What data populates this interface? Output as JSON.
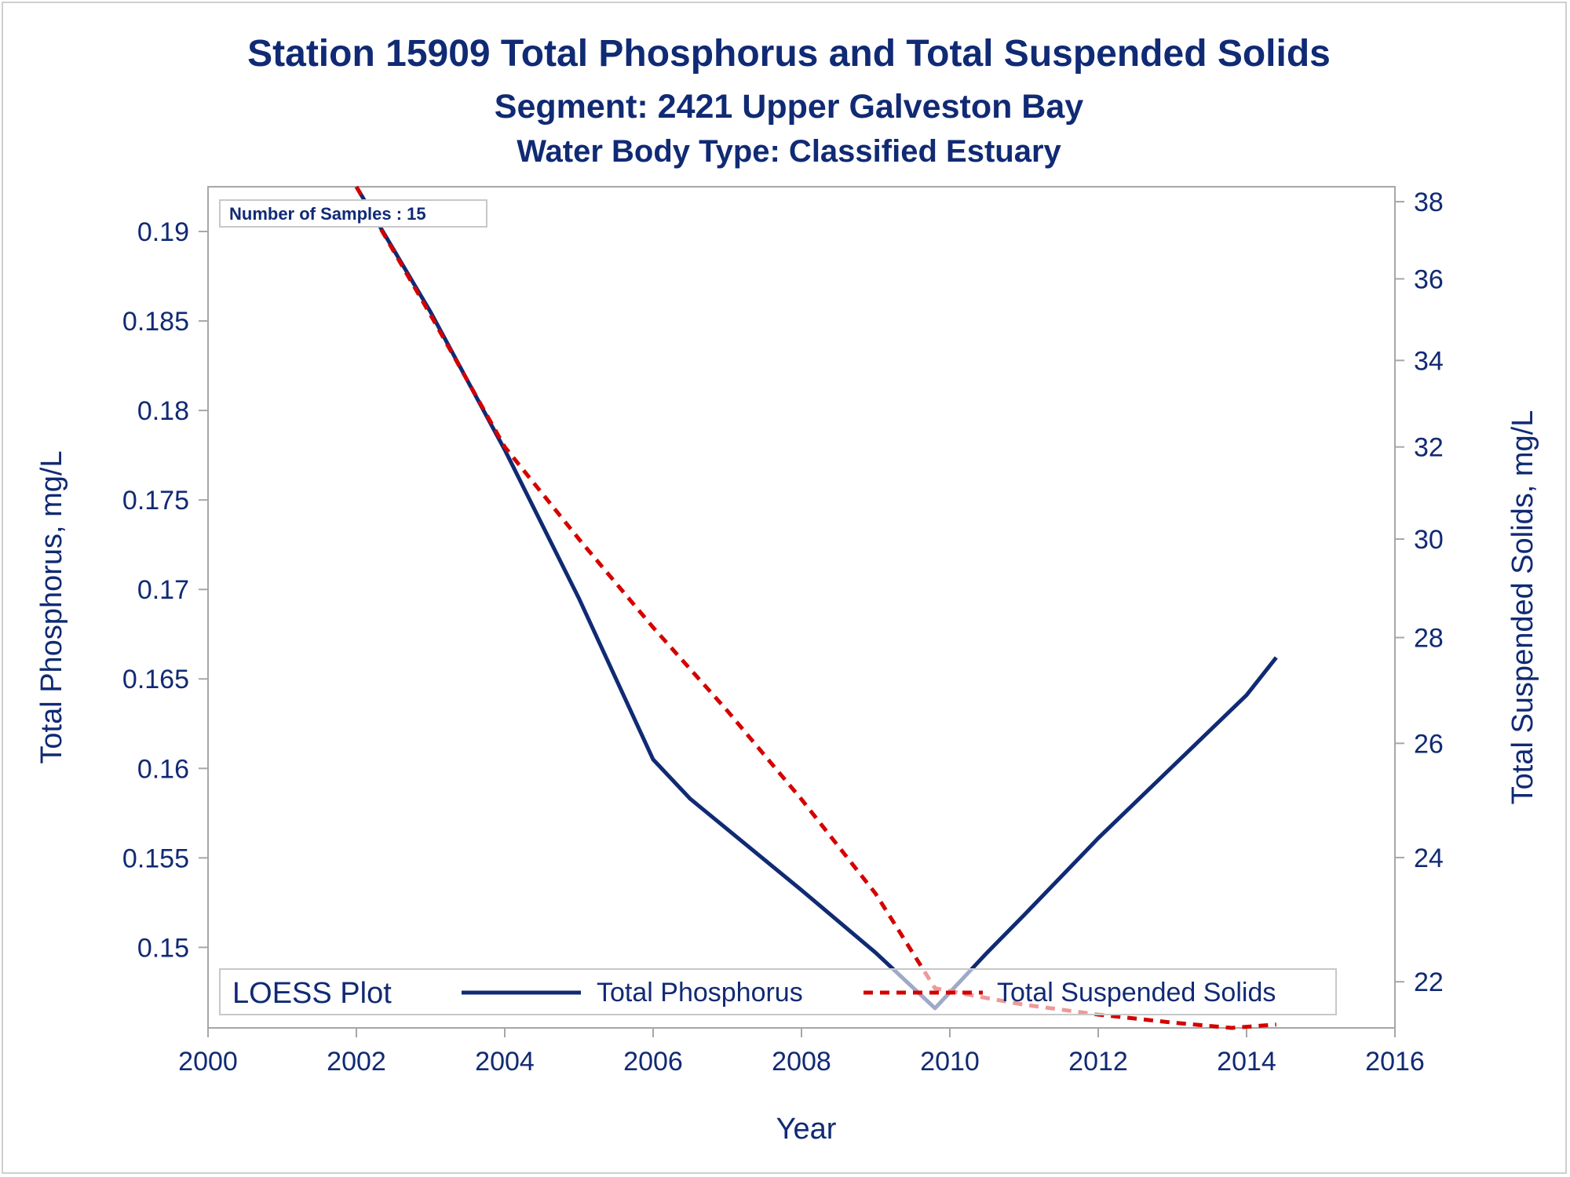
{
  "chart_data": {
    "type": "line",
    "title": "Station 15909  Total Phosphorus and Total Suspended Solids",
    "subtitle": "Segment: 2421  Upper Galveston Bay",
    "subtitle2": "Water Body Type: Classified Estuary",
    "xlabel": "Year",
    "ylabel_left": "Total Phosphorus, mg/L",
    "ylabel_right": "Total Suspended Solids, mg/L",
    "xlim": [
      2000,
      2016
    ],
    "x_ticks": [
      2000,
      2002,
      2004,
      2006,
      2008,
      2010,
      2012,
      2014,
      2016
    ],
    "ylim_left": [
      0.1455,
      0.1925
    ],
    "y_ticks_left": [
      0.15,
      0.155,
      0.16,
      0.165,
      0.17,
      0.175,
      0.18,
      0.185,
      0.19
    ],
    "y_tick_labels_left": [
      "0.15",
      "0.155",
      "0.16",
      "0.165",
      "0.17",
      "0.175",
      "0.18",
      "0.185",
      "0.19"
    ],
    "ylim_right": [
      21.3,
      38.4
    ],
    "y_ticks_right": [
      22,
      24,
      26,
      28,
      30,
      32,
      34,
      36,
      38
    ],
    "y_right_scale": "log",
    "annotation": "Number of Samples : 15",
    "legend": {
      "title": "LOESS Plot",
      "placement": "bottom-inside",
      "entries": [
        "Total Phosphorus",
        "Total Suspended Solids"
      ]
    },
    "series": [
      {
        "name": "Total Phosphorus",
        "axis": "left",
        "color": "#102a74",
        "style": "solid",
        "x": [
          2002.0,
          2003.0,
          2004.0,
          2005.0,
          2006.0,
          2006.5,
          2007.0,
          2008.0,
          2009.0,
          2009.8,
          2010.5,
          2011.0,
          2012.0,
          2013.0,
          2014.0,
          2014.4
        ],
        "y": [
          0.1925,
          0.1855,
          0.1778,
          0.1695,
          0.1605,
          0.1583,
          0.1566,
          0.1532,
          0.1497,
          0.1466,
          0.1497,
          0.1518,
          0.1561,
          0.1601,
          0.1641,
          0.1662
        ]
      },
      {
        "name": "Total Suspended Solids",
        "axis": "right",
        "color": "#d40000",
        "style": "dashed",
        "x": [
          2002.0,
          2003.0,
          2004.0,
          2005.0,
          2006.0,
          2007.0,
          2008.0,
          2009.0,
          2009.8,
          2010.5,
          2011.0,
          2012.0,
          2013.0,
          2013.8,
          2014.4
        ],
        "y": [
          38.4,
          35.1,
          32.0,
          30.0,
          28.2,
          26.6,
          25.0,
          23.4,
          21.9,
          21.75,
          21.65,
          21.5,
          21.38,
          21.3,
          21.35
        ]
      }
    ]
  }
}
